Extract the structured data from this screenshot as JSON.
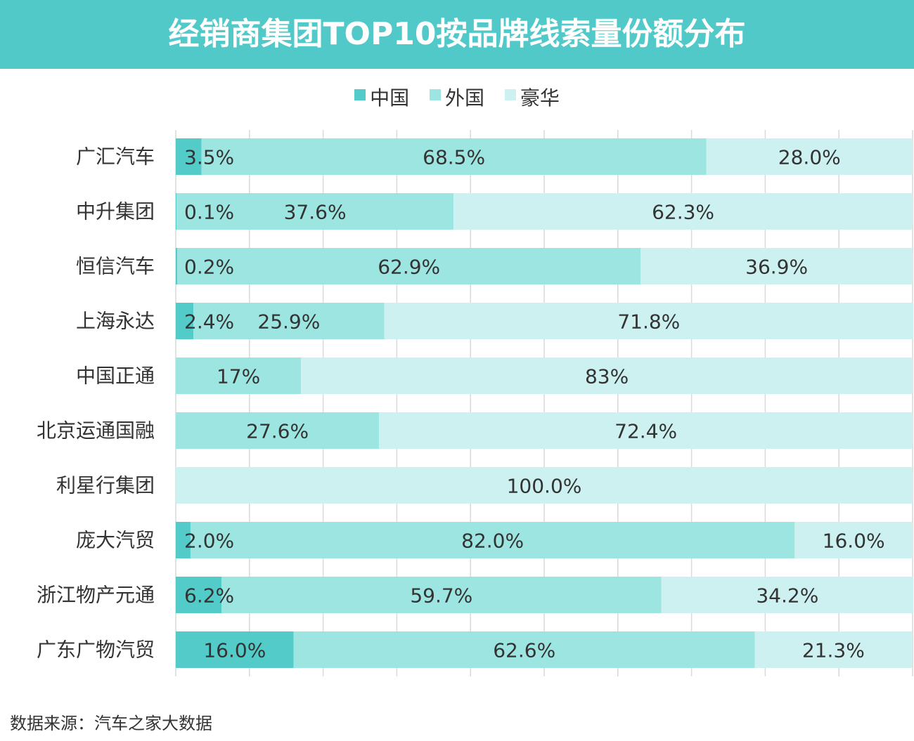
{
  "title": "经销商集团TOP10按品牌线索量份额分布",
  "source": "数据来源：汽车之家大数据",
  "colors": {
    "banner": "#52c9c9",
    "domestic": "#52cbc9",
    "foreign": "#9ce5e1",
    "luxury": "#cdf1f0",
    "grid": "#d9d9d9",
    "text": "#333333"
  },
  "chart_data": {
    "type": "bar",
    "orientation": "horizontal",
    "stacked": "percent",
    "title": "经销商集团TOP10按品牌线索量份额分布",
    "legend_position": "top",
    "xlim": [
      0,
      100
    ],
    "categories": [
      "广汇汽车",
      "中升集团",
      "恒信汽车",
      "上海永达",
      "中国正通",
      "北京运通国融",
      "利星行集团",
      "庞大汽贸",
      "浙江物产元通",
      "广东广物汽贸"
    ],
    "series": [
      {
        "name": "中国",
        "color": "#52cbc9",
        "values": [
          3.5,
          0.1,
          0.2,
          2.4,
          0,
          0,
          0,
          2.0,
          6.2,
          16.0
        ],
        "labels": [
          "3.5%",
          "0.1%",
          "0.2%",
          "2.4%",
          "",
          "",
          "",
          "2.0%",
          "6.2%",
          "16.0%"
        ]
      },
      {
        "name": "外国",
        "color": "#9ce5e1",
        "values": [
          68.5,
          37.6,
          62.9,
          25.9,
          17,
          27.6,
          0,
          82.0,
          59.7,
          62.6
        ],
        "labels": [
          "68.5%",
          "37.6%",
          "62.9%",
          "25.9%",
          "17%",
          "27.6%",
          "",
          "82.0%",
          "59.7%",
          "62.6%"
        ]
      },
      {
        "name": "豪华",
        "color": "#cdf1f0",
        "values": [
          28.0,
          62.3,
          36.9,
          71.8,
          83,
          72.4,
          100.0,
          16.0,
          34.2,
          21.3
        ],
        "labels": [
          "28.0%",
          "62.3%",
          "36.9%",
          "71.8%",
          "83%",
          "72.4%",
          "100.0%",
          "16.0%",
          "34.2%",
          "21.3%"
        ]
      }
    ]
  }
}
